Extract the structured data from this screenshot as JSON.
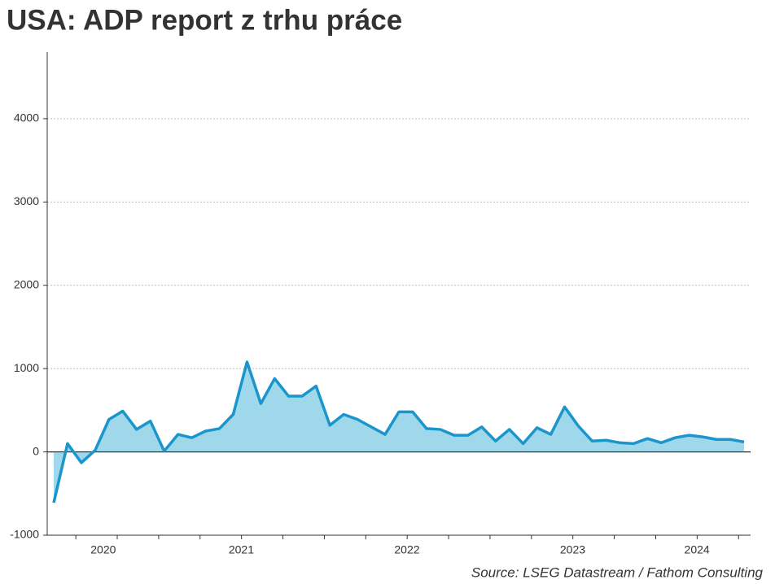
{
  "chart_data": {
    "type": "area",
    "title": "USA: ADP report z trhu práce",
    "source": "Source: LSEG Datastream / Fathom Consulting",
    "categories": [
      null,
      null,
      null,
      null,
      "2020",
      null,
      null,
      null,
      null,
      null,
      null,
      null,
      null,
      null,
      "2021",
      null,
      null,
      null,
      null,
      null,
      null,
      null,
      null,
      null,
      null,
      null,
      "2022",
      null,
      null,
      null,
      null,
      null,
      null,
      null,
      null,
      null,
      null,
      null,
      "2023",
      null,
      null,
      null,
      null,
      null,
      null,
      null,
      null,
      "2024",
      null,
      null,
      null
    ],
    "series": [
      {
        "color": "#1a96cc",
        "fill": "#9fd7eb",
        "values": [
          -610,
          100,
          -130,
          20,
          390,
          490,
          270,
          370,
          10,
          210,
          170,
          250,
          280,
          450,
          1080,
          580,
          880,
          670,
          670,
          790,
          320,
          450,
          390,
          300,
          210,
          480,
          480,
          280,
          270,
          200,
          200,
          300,
          130,
          270,
          100,
          290,
          210,
          540,
          310,
          130,
          140,
          110,
          100,
          160,
          110,
          170,
          200,
          180,
          150,
          150,
          120
        ]
      }
    ],
    "ylim": [
      -1000,
      4800
    ],
    "yticks": [
      -1000,
      0,
      1000,
      2000,
      3000,
      4000
    ],
    "grid": true
  }
}
